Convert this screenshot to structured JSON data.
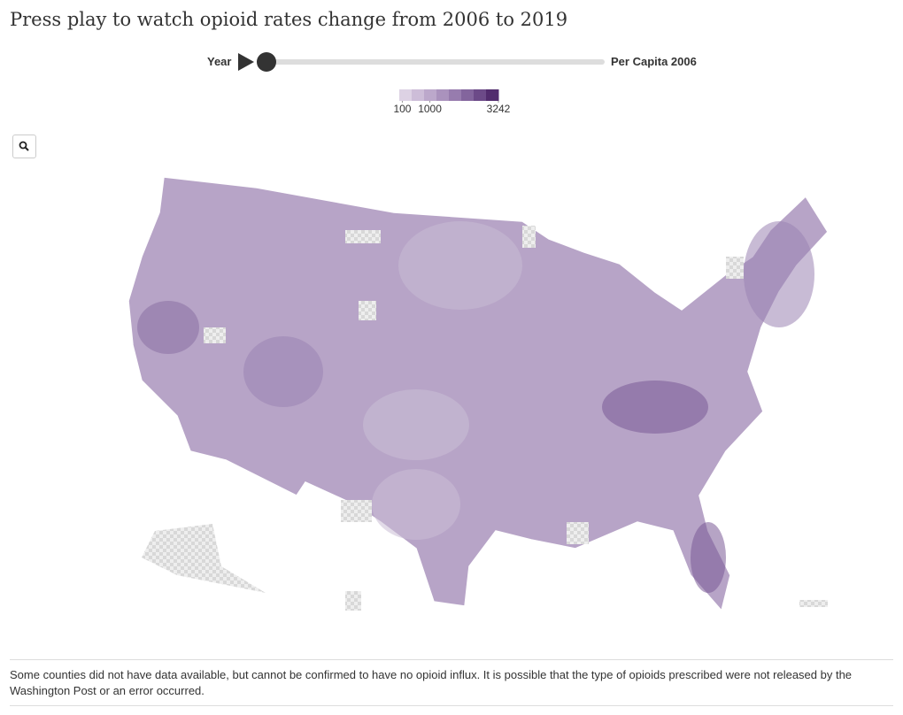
{
  "header": {
    "title": "Press play to watch opioid rates change from 2006 to 2019"
  },
  "slider": {
    "label": "Year",
    "value_label": "Per Capita 2006"
  },
  "legend": {
    "lim": [
      0,
      3242
    ],
    "ticks": [
      100,
      1000,
      3242
    ],
    "colors": [
      "#ddd2e4",
      "#cdbdd8",
      "#bca8cb",
      "#aa92bd",
      "#977cae",
      "#83659d",
      "#6c4a88",
      "#522c6e"
    ]
  },
  "footer": {
    "note": "Some counties did not have data available, but cannot be confirmed to have no opioid influx. It is possible that the type of opioids prescribed were not released by the Washington Post or an error occurred."
  }
}
